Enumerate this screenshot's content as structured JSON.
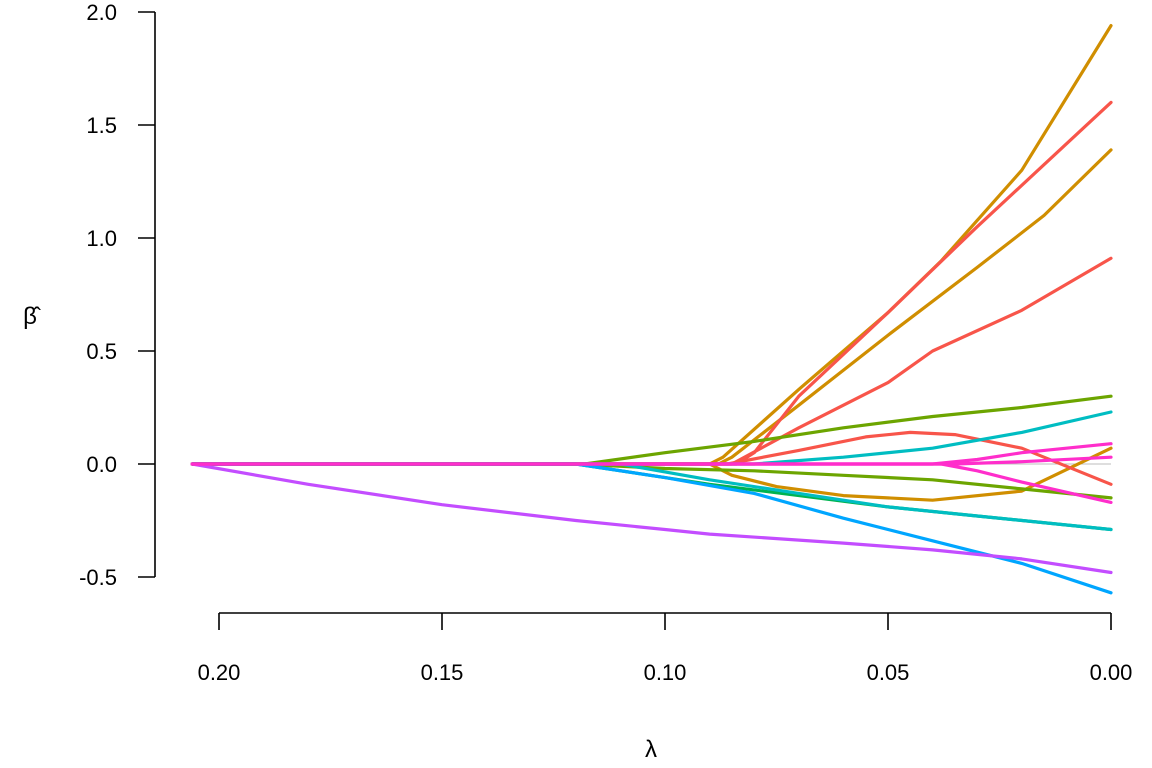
{
  "chart_data": {
    "type": "line",
    "title": "",
    "xlabel": "λ",
    "ylabel": "β̂",
    "xlim": [
      0.2,
      0.0
    ],
    "ylim": [
      -0.5,
      2.0
    ],
    "x_reversed": true,
    "grid": false,
    "legend": "none",
    "reference_line": {
      "y": 0,
      "color": "#bdbdbd"
    },
    "xticks": [
      {
        "value": 0.2,
        "label": "0.20"
      },
      {
        "value": 0.15,
        "label": "0.15"
      },
      {
        "value": 0.1,
        "label": "0.10"
      },
      {
        "value": 0.05,
        "label": "0.05"
      },
      {
        "value": 0.0,
        "label": "0.00"
      }
    ],
    "yticks": [
      {
        "value": -0.5,
        "label": "-0.5"
      },
      {
        "value": 0.0,
        "label": "0.0"
      },
      {
        "value": 0.5,
        "label": "0.5"
      },
      {
        "value": 1.0,
        "label": "1.0"
      },
      {
        "value": 1.5,
        "label": "1.5"
      },
      {
        "value": 2.0,
        "label": "2.0"
      }
    ],
    "series": [
      {
        "color": "#d08e00",
        "points": [
          [
            0.206,
            0
          ],
          [
            0.09,
            0
          ],
          [
            0.087,
            0.03
          ],
          [
            0.07,
            0.33
          ],
          [
            0.05,
            0.67
          ],
          [
            0.038,
            0.9
          ],
          [
            0.02,
            1.3
          ],
          [
            0.0,
            1.94
          ]
        ]
      },
      {
        "color": "#d08e00",
        "points": [
          [
            0.206,
            0
          ],
          [
            0.088,
            0
          ],
          [
            0.085,
            0.03
          ],
          [
            0.07,
            0.26
          ],
          [
            0.05,
            0.57
          ],
          [
            0.03,
            0.87
          ],
          [
            0.015,
            1.1
          ],
          [
            0.0,
            1.39
          ]
        ]
      },
      {
        "color": "#d08e00",
        "points": [
          [
            0.206,
            0
          ],
          [
            0.09,
            0
          ],
          [
            0.085,
            -0.05
          ],
          [
            0.075,
            -0.1
          ],
          [
            0.06,
            -0.14
          ],
          [
            0.04,
            -0.16
          ],
          [
            0.02,
            -0.12
          ],
          [
            0.0,
            0.07
          ]
        ]
      },
      {
        "color": "#f8554a",
        "points": [
          [
            0.206,
            0
          ],
          [
            0.084,
            0
          ],
          [
            0.08,
            0.05
          ],
          [
            0.07,
            0.3
          ],
          [
            0.05,
            0.67
          ],
          [
            0.03,
            1.05
          ],
          [
            0.0,
            1.6
          ]
        ]
      },
      {
        "color": "#f8554a",
        "points": [
          [
            0.206,
            0
          ],
          [
            0.085,
            0
          ],
          [
            0.07,
            0.16
          ],
          [
            0.05,
            0.36
          ],
          [
            0.04,
            0.5
          ],
          [
            0.02,
            0.68
          ],
          [
            0.0,
            0.91
          ]
        ]
      },
      {
        "color": "#f8554a",
        "points": [
          [
            0.206,
            0
          ],
          [
            0.086,
            0
          ],
          [
            0.07,
            0.06
          ],
          [
            0.055,
            0.12
          ],
          [
            0.045,
            0.14
          ],
          [
            0.035,
            0.13
          ],
          [
            0.02,
            0.07
          ],
          [
            0.0,
            -0.09
          ]
        ]
      },
      {
        "color": "#6ca500",
        "points": [
          [
            0.206,
            0
          ],
          [
            0.118,
            0
          ],
          [
            0.1,
            0.05
          ],
          [
            0.08,
            0.1
          ],
          [
            0.06,
            0.16
          ],
          [
            0.04,
            0.21
          ],
          [
            0.02,
            0.25
          ],
          [
            0.0,
            0.3
          ]
        ]
      },
      {
        "color": "#6ca500",
        "points": [
          [
            0.206,
            0
          ],
          [
            0.12,
            0
          ],
          [
            0.1,
            -0.02
          ],
          [
            0.08,
            -0.03
          ],
          [
            0.06,
            -0.05
          ],
          [
            0.04,
            -0.07
          ],
          [
            0.02,
            -0.11
          ],
          [
            0.0,
            -0.15
          ]
        ]
      },
      {
        "color": "#00b34f",
        "points": [
          [
            0.206,
            0
          ],
          [
            0.12,
            0
          ],
          [
            0.1,
            -0.06
          ],
          [
            0.09,
            -0.09
          ],
          [
            0.07,
            -0.14
          ],
          [
            0.05,
            -0.19
          ],
          [
            0.03,
            -0.23
          ],
          [
            0.0,
            -0.29
          ]
        ]
      },
      {
        "color": "#00bdc2",
        "points": [
          [
            0.206,
            0
          ],
          [
            0.1,
            0
          ],
          [
            0.08,
            0.0
          ],
          [
            0.06,
            0.03
          ],
          [
            0.04,
            0.07
          ],
          [
            0.02,
            0.14
          ],
          [
            0.0,
            0.23
          ]
        ]
      },
      {
        "color": "#00bdc2",
        "points": [
          [
            0.206,
            0
          ],
          [
            0.11,
            0
          ],
          [
            0.09,
            -0.07
          ],
          [
            0.07,
            -0.13
          ],
          [
            0.05,
            -0.19
          ],
          [
            0.03,
            -0.23
          ],
          [
            0.0,
            -0.29
          ]
        ]
      },
      {
        "color": "#00a6ff",
        "points": [
          [
            0.206,
            0
          ],
          [
            0.12,
            0
          ],
          [
            0.1,
            -0.06
          ],
          [
            0.08,
            -0.13
          ],
          [
            0.06,
            -0.24
          ],
          [
            0.04,
            -0.34
          ],
          [
            0.02,
            -0.44
          ],
          [
            0.0,
            -0.57
          ]
        ]
      },
      {
        "color": "#c34dff",
        "points": [
          [
            0.206,
            0
          ],
          [
            0.18,
            -0.09
          ],
          [
            0.15,
            -0.18
          ],
          [
            0.12,
            -0.25
          ],
          [
            0.1,
            -0.29
          ],
          [
            0.09,
            -0.31
          ],
          [
            0.06,
            -0.35
          ],
          [
            0.04,
            -0.38
          ],
          [
            0.02,
            -0.42
          ],
          [
            0.0,
            -0.48
          ]
        ]
      },
      {
        "color": "#ff2ecb",
        "points": [
          [
            0.206,
            0
          ],
          [
            0.04,
            0
          ],
          [
            0.03,
            0.02
          ],
          [
            0.02,
            0.05
          ],
          [
            0.0,
            0.09
          ]
        ]
      },
      {
        "color": "#ff2ecb",
        "points": [
          [
            0.206,
            0
          ],
          [
            0.038,
            0
          ],
          [
            0.03,
            -0.03
          ],
          [
            0.02,
            -0.08
          ],
          [
            0.0,
            -0.17
          ]
        ]
      },
      {
        "color": "#ff2ecb",
        "points": [
          [
            0.206,
            0
          ],
          [
            0.035,
            0
          ],
          [
            0.02,
            0.01
          ],
          [
            0.0,
            0.03
          ]
        ]
      }
    ]
  }
}
